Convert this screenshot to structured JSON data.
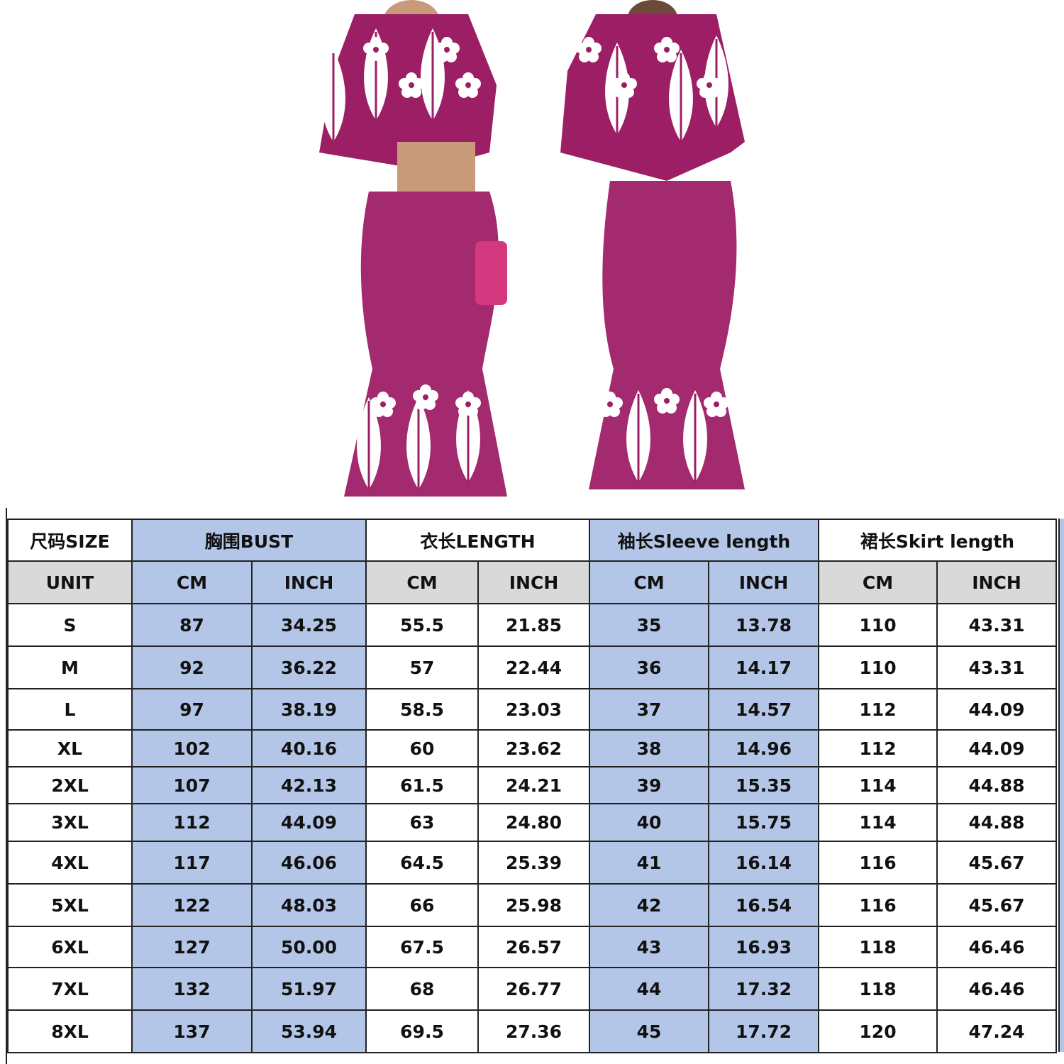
{
  "product": {
    "image": "two-piece pink Polynesian print top and mermaid skirt, front and back views",
    "colors": {
      "fabric": "#9c1f66",
      "print": "#ffffff",
      "accent": "#b8327a"
    }
  },
  "size_chart": {
    "headers": [
      "尺码SIZE",
      "胸围BUST",
      "衣长LENGTH",
      "袖长Sleeve length",
      "裙长Skirt length"
    ],
    "unit_row": [
      "UNIT",
      "CM",
      "INCH",
      "CM",
      "INCH",
      "CM",
      "INCH",
      "CM",
      "INCH"
    ],
    "rows": [
      [
        "S",
        "87",
        "34.25",
        "55.5",
        "21.85",
        "35",
        "13.78",
        "110",
        "43.31"
      ],
      [
        "M",
        "92",
        "36.22",
        "57",
        "22.44",
        "36",
        "14.17",
        "110",
        "43.31"
      ],
      [
        "L",
        "97",
        "38.19",
        "58.5",
        "23.03",
        "37",
        "14.57",
        "112",
        "44.09"
      ],
      [
        "XL",
        "102",
        "40.16",
        "60",
        "23.62",
        "38",
        "14.96",
        "112",
        "44.09"
      ],
      [
        "2XL",
        "107",
        "42.13",
        "61.5",
        "24.21",
        "39",
        "15.35",
        "114",
        "44.88"
      ],
      [
        "3XL",
        "112",
        "44.09",
        "63",
        "24.80",
        "40",
        "15.75",
        "114",
        "44.88"
      ],
      [
        "4XL",
        "117",
        "46.06",
        "64.5",
        "25.39",
        "41",
        "16.14",
        "116",
        "45.67"
      ],
      [
        "5XL",
        "122",
        "48.03",
        "66",
        "25.98",
        "42",
        "16.54",
        "116",
        "45.67"
      ],
      [
        "6XL",
        "127",
        "50.00",
        "67.5",
        "26.57",
        "43",
        "16.93",
        "118",
        "46.46"
      ],
      [
        "7XL",
        "132",
        "51.97",
        "68",
        "26.77",
        "44",
        "17.32",
        "118",
        "46.46"
      ],
      [
        "8XL",
        "137",
        "53.94",
        "69.5",
        "27.36",
        "45",
        "17.72",
        "120",
        "47.24"
      ]
    ],
    "colors": {
      "blue": "#b4c6e7",
      "gray": "#d9d9d9",
      "border": "#222222"
    }
  }
}
